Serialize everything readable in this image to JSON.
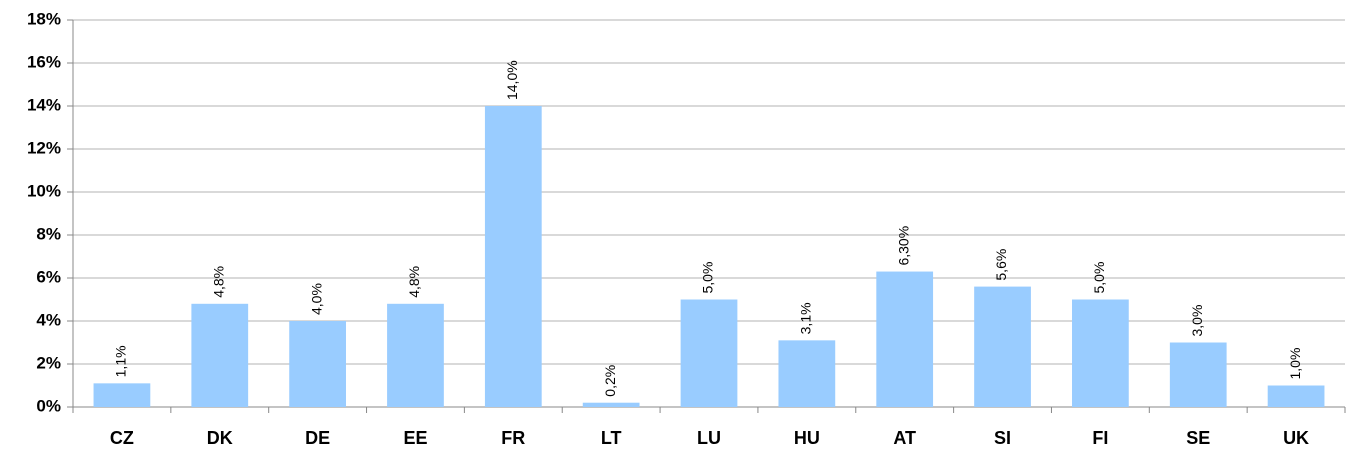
{
  "chart_data": {
    "type": "bar",
    "categories": [
      "CZ",
      "DK",
      "DE",
      "EE",
      "FR",
      "LT",
      "LU",
      "HU",
      "AT",
      "SI",
      "FI",
      "SE",
      "UK"
    ],
    "values": [
      1.1,
      4.8,
      4.0,
      4.8,
      14.0,
      0.2,
      5.0,
      3.1,
      6.3,
      5.6,
      5.0,
      3.0,
      1.0
    ],
    "value_labels": [
      "1,1%",
      "4,8%",
      "4,0%",
      "4,8%",
      "14,0%",
      "0,2%",
      "5,0%",
      "3,1%",
      "6,30%",
      "5,6%",
      "5,0%",
      "3,0%",
      "1,0%"
    ],
    "color": "#99ccff",
    "ylim": [
      0,
      18
    ],
    "yticks": [
      {
        "value": 0,
        "label": "0%"
      },
      {
        "value": 2,
        "label": "2%"
      },
      {
        "value": 4,
        "label": "4%"
      },
      {
        "value": 6,
        "label": "6%"
      },
      {
        "value": 8,
        "label": "8%"
      },
      {
        "value": 10,
        "label": "10%"
      },
      {
        "value": 12,
        "label": "12%"
      },
      {
        "value": 14,
        "label": "14%"
      },
      {
        "value": 16,
        "label": "16%"
      },
      {
        "value": 18,
        "label": "18%"
      }
    ],
    "grid": true
  }
}
